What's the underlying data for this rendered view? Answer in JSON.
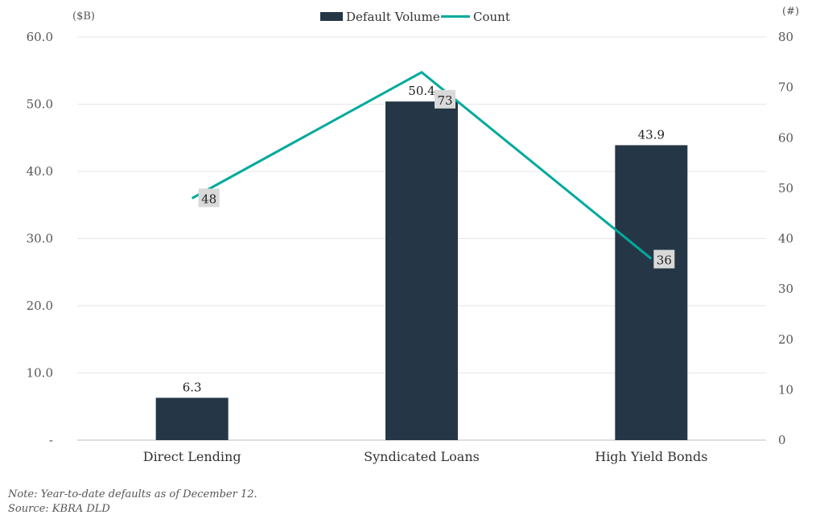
{
  "chart_data": {
    "type": "bar",
    "categories": [
      "Direct Lending",
      "Syndicated Loans",
      "High Yield Bonds"
    ],
    "series": [
      {
        "name": "Default Volume",
        "type": "bar",
        "axis": "left",
        "values": [
          6.3,
          50.4,
          43.9
        ],
        "color": "#253746",
        "labels": [
          "6.3",
          "50.4",
          "43.9"
        ]
      },
      {
        "name": "Count",
        "type": "line",
        "axis": "right",
        "values": [
          48,
          73,
          36
        ],
        "color": "#00A99D",
        "labels": [
          "48",
          "73",
          "36"
        ]
      }
    ],
    "left_axis": {
      "unit": "($B)",
      "min": 0,
      "max": 60,
      "ticks": [
        0,
        10,
        20,
        30,
        40,
        50,
        60
      ],
      "tick_labels": [
        "-",
        "10.0",
        "20.0",
        "30.0",
        "40.0",
        "50.0",
        "60.0"
      ]
    },
    "right_axis": {
      "unit": "(#)",
      "min": 0,
      "max": 80,
      "ticks": [
        0,
        10,
        20,
        30,
        40,
        50,
        60,
        70,
        80
      ],
      "tick_labels": [
        "0",
        "10",
        "20",
        "30",
        "40",
        "50",
        "60",
        "70",
        "80"
      ]
    },
    "grid": true,
    "legend_position": "top-center"
  },
  "notes": {
    "note": "Note: Year-to-date defaults as of December 12.",
    "source": "Source: KBRA DLD"
  }
}
